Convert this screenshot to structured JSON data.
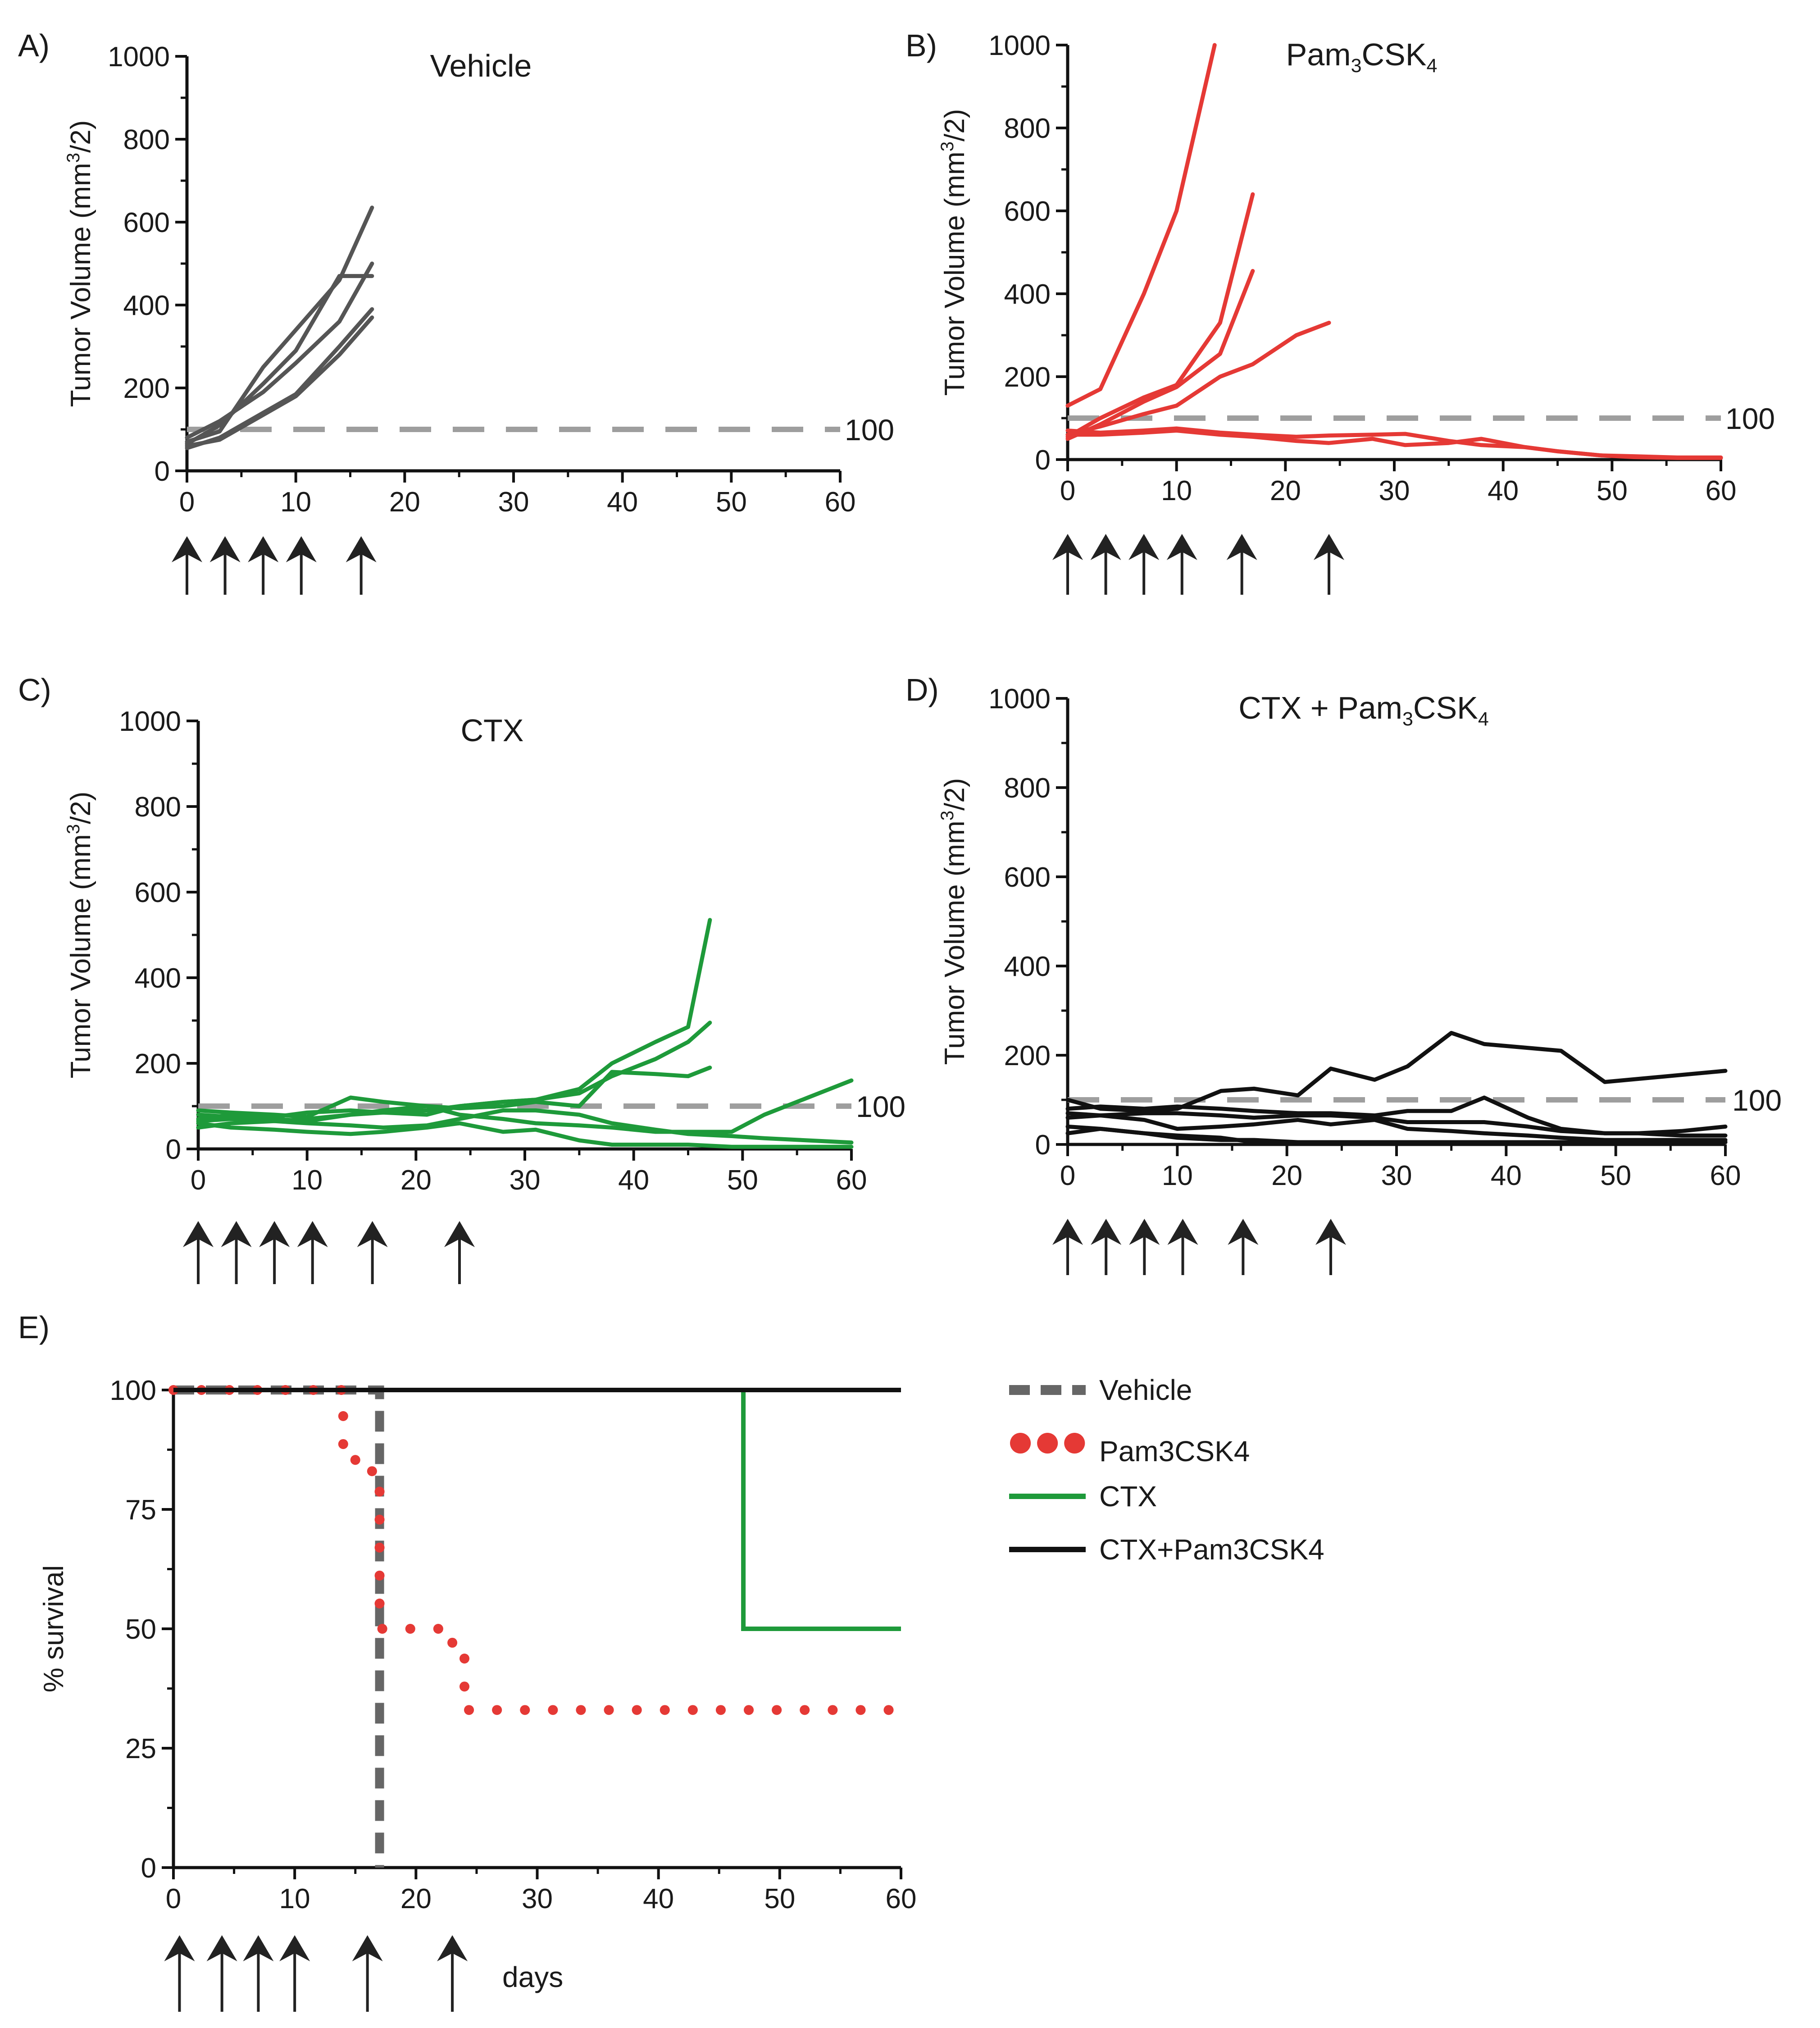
{
  "chart_data": [
    {
      "panel": "A)",
      "type": "line",
      "title": "Vehicle",
      "ylabel": "Tumor Volume (mm³/2)",
      "xlabel": "",
      "xlim": [
        0,
        60
      ],
      "ylim": [
        0,
        1000
      ],
      "xticks": [
        0,
        10,
        20,
        30,
        40,
        50,
        60
      ],
      "yticks": [
        0,
        200,
        400,
        600,
        800,
        1000
      ],
      "threshold": {
        "value": 100,
        "label": "100",
        "color": "#9e9e9e"
      },
      "line_color": "#555555",
      "dosing_days": [
        0,
        3.5,
        7,
        10.5,
        16
      ],
      "series": [
        {
          "x": [
            0,
            3,
            7,
            10,
            14,
            17
          ],
          "y": [
            65,
            110,
            210,
            290,
            470,
            470
          ]
        },
        {
          "x": [
            0,
            3,
            7,
            10,
            14,
            17
          ],
          "y": [
            70,
            95,
            250,
            340,
            460,
            635
          ]
        },
        {
          "x": [
            0,
            3,
            7,
            10,
            14,
            17
          ],
          "y": [
            80,
            120,
            190,
            260,
            360,
            500
          ]
        },
        {
          "x": [
            0,
            3,
            7,
            10,
            14,
            17
          ],
          "y": [
            55,
            80,
            140,
            185,
            300,
            390
          ]
        },
        {
          "x": [
            0,
            3,
            7,
            10,
            14,
            17
          ],
          "y": [
            60,
            75,
            135,
            180,
            280,
            370
          ]
        }
      ]
    },
    {
      "panel": "B)",
      "type": "line",
      "title": "Pam₃CSK₄",
      "ylabel": "Tumor Volume (mm³/2)",
      "xlabel": "",
      "xlim": [
        0,
        60
      ],
      "ylim": [
        0,
        1000
      ],
      "xticks": [
        0,
        10,
        20,
        30,
        40,
        50,
        60
      ],
      "yticks": [
        0,
        200,
        400,
        600,
        800,
        1000
      ],
      "threshold": {
        "value": 100,
        "label": "100",
        "color": "#9e9e9e"
      },
      "line_color": "#e53935",
      "dosing_days": [
        0,
        3.5,
        7,
        10.5,
        16,
        24
      ],
      "series": [
        {
          "x": [
            0,
            3,
            7,
            10,
            13.5
          ],
          "y": [
            130,
            170,
            400,
            600,
            1000
          ]
        },
        {
          "x": [
            0,
            3,
            7,
            10,
            14,
            17
          ],
          "y": [
            55,
            100,
            150,
            180,
            330,
            640
          ]
        },
        {
          "x": [
            0,
            3,
            7,
            10,
            14,
            17
          ],
          "y": [
            50,
            85,
            140,
            175,
            255,
            455
          ]
        },
        {
          "x": [
            0,
            3,
            7,
            10,
            14,
            17,
            21,
            24
          ],
          "y": [
            60,
            80,
            110,
            130,
            200,
            230,
            300,
            330
          ]
        },
        {
          "x": [
            0,
            3,
            7,
            10,
            14,
            17,
            21,
            24,
            28,
            31,
            35,
            38,
            42,
            45,
            49,
            52,
            56,
            60
          ],
          "y": [
            70,
            65,
            70,
            75,
            65,
            60,
            55,
            58,
            60,
            62,
            45,
            35,
            30,
            20,
            10,
            8,
            5,
            5
          ]
        },
        {
          "x": [
            0,
            3,
            7,
            10,
            14,
            17,
            21,
            24,
            28,
            31,
            35,
            38,
            42,
            45,
            49,
            52,
            56,
            60
          ],
          "y": [
            60,
            60,
            65,
            70,
            60,
            55,
            45,
            40,
            50,
            35,
            40,
            50,
            30,
            20,
            10,
            6,
            4,
            4
          ]
        }
      ]
    },
    {
      "panel": "C)",
      "type": "line",
      "title": "CTX",
      "ylabel": "Tumor Volume (mm³/2)",
      "xlabel": "",
      "xlim": [
        0,
        60
      ],
      "ylim": [
        0,
        1000
      ],
      "xticks": [
        0,
        10,
        20,
        30,
        40,
        50,
        60
      ],
      "yticks": [
        0,
        200,
        400,
        600,
        800,
        1000
      ],
      "threshold": {
        "value": 100,
        "label": "100",
        "color": "#9e9e9e"
      },
      "line_color": "#1e9a3a",
      "dosing_days": [
        0,
        3.5,
        7,
        10.5,
        16,
        24
      ],
      "series": [
        {
          "x": [
            0,
            3,
            7,
            10,
            14,
            17,
            21,
            24,
            28,
            31,
            35,
            38,
            42,
            45,
            47
          ],
          "y": [
            70,
            80,
            75,
            85,
            90,
            85,
            80,
            100,
            110,
            115,
            140,
            200,
            250,
            285,
            535
          ]
        },
        {
          "x": [
            0,
            3,
            7,
            10,
            14,
            17,
            21,
            24,
            28,
            31,
            35,
            38,
            42,
            45,
            47
          ],
          "y": [
            50,
            60,
            65,
            70,
            80,
            85,
            90,
            100,
            110,
            115,
            130,
            170,
            210,
            250,
            295
          ]
        },
        {
          "x": [
            0,
            3,
            7,
            10,
            14,
            17,
            21,
            24,
            28,
            31,
            35,
            38,
            42,
            45,
            47
          ],
          "y": [
            80,
            75,
            70,
            65,
            80,
            90,
            100,
            95,
            100,
            110,
            100,
            180,
            175,
            170,
            190
          ]
        },
        {
          "x": [
            0,
            3,
            7,
            10,
            14,
            17,
            21,
            24,
            28,
            31,
            35,
            38,
            42,
            45,
            49,
            52,
            56,
            60
          ],
          "y": [
            90,
            85,
            80,
            75,
            120,
            110,
            100,
            80,
            70,
            60,
            55,
            50,
            40,
            40,
            40,
            80,
            120,
            160
          ]
        },
        {
          "x": [
            0,
            3,
            7,
            10,
            14,
            17,
            21,
            24,
            28,
            31,
            35,
            38,
            42,
            45,
            49,
            52,
            56,
            60
          ],
          "y": [
            65,
            70,
            65,
            60,
            55,
            50,
            55,
            70,
            90,
            90,
            80,
            60,
            45,
            35,
            30,
            25,
            20,
            15
          ]
        },
        {
          "x": [
            0,
            3,
            7,
            10,
            14,
            17,
            21,
            24,
            28,
            31,
            35,
            38,
            42,
            45,
            49,
            52,
            56,
            60
          ],
          "y": [
            60,
            50,
            45,
            40,
            35,
            40,
            50,
            60,
            40,
            45,
            20,
            10,
            10,
            10,
            5,
            5,
            5,
            5
          ]
        }
      ]
    },
    {
      "panel": "D)",
      "type": "line",
      "title": "CTX + Pam₃CSK₄",
      "ylabel": "Tumor Volume (mm³/2)",
      "xlabel": "",
      "xlim": [
        0,
        60
      ],
      "ylim": [
        0,
        1000
      ],
      "xticks": [
        0,
        10,
        20,
        30,
        40,
        50,
        60
      ],
      "yticks": [
        0,
        200,
        400,
        600,
        800,
        1000
      ],
      "threshold": {
        "value": 100,
        "label": "100",
        "color": "#9e9e9e"
      },
      "line_color": "#111111",
      "dosing_days": [
        0,
        3.5,
        7,
        10.5,
        16,
        24
      ],
      "series": [
        {
          "x": [
            0,
            3,
            7,
            10,
            14,
            17,
            21,
            24,
            28,
            31,
            35,
            38,
            45,
            49,
            60
          ],
          "y": [
            100,
            80,
            75,
            80,
            120,
            125,
            110,
            170,
            145,
            175,
            250,
            225,
            210,
            140,
            165
          ]
        },
        {
          "x": [
            0,
            3,
            7,
            10,
            14,
            17,
            21,
            24,
            28,
            31,
            35,
            38,
            42,
            45,
            49,
            52,
            56,
            60
          ],
          "y": [
            80,
            85,
            80,
            85,
            80,
            75,
            70,
            70,
            65,
            75,
            75,
            105,
            60,
            35,
            25,
            25,
            20,
            20
          ]
        },
        {
          "x": [
            0,
            3,
            7,
            10,
            14,
            17,
            21,
            24,
            28,
            31,
            35,
            38,
            42,
            45,
            49,
            52,
            56,
            60
          ],
          "y": [
            60,
            65,
            70,
            70,
            65,
            60,
            65,
            65,
            60,
            50,
            50,
            50,
            40,
            30,
            25,
            25,
            30,
            40
          ]
        },
        {
          "x": [
            0,
            3,
            7,
            10,
            14,
            17,
            21,
            24,
            28,
            31,
            35,
            38,
            42,
            45,
            49,
            52,
            56,
            60
          ],
          "y": [
            70,
            65,
            55,
            35,
            40,
            45,
            55,
            45,
            55,
            35,
            30,
            25,
            20,
            15,
            10,
            10,
            10,
            10
          ]
        },
        {
          "x": [
            0,
            3,
            7,
            10,
            14,
            17,
            21,
            24,
            28,
            31,
            35,
            38,
            42,
            45,
            49,
            52,
            56,
            60
          ],
          "y": [
            40,
            35,
            25,
            20,
            15,
            5,
            5,
            5,
            5,
            5,
            5,
            5,
            5,
            5,
            5,
            5,
            5,
            5
          ]
        },
        {
          "x": [
            0,
            3,
            7,
            10,
            14,
            17,
            21,
            24,
            28,
            31,
            35,
            38,
            42,
            45,
            49,
            52,
            56,
            60
          ],
          "y": [
            25,
            35,
            25,
            15,
            10,
            10,
            5,
            5,
            5,
            5,
            5,
            5,
            5,
            5,
            5,
            5,
            5,
            5
          ]
        }
      ]
    },
    {
      "panel": "E)",
      "type": "line",
      "subtype": "survival-step",
      "title": "",
      "xlabel": "days",
      "ylabel": "% survival",
      "xlim": [
        0,
        60
      ],
      "ylim": [
        0,
        100
      ],
      "xticks": [
        0,
        10,
        20,
        30,
        40,
        50,
        60
      ],
      "yticks": [
        0,
        25,
        50,
        75,
        100
      ],
      "dosing_days": [
        0.5,
        4,
        7,
        10,
        16,
        23
      ],
      "legend_position": "right",
      "series": [
        {
          "name": "Vehicle",
          "color": "#666666",
          "style": "dashed",
          "x": [
            0,
            17,
            17
          ],
          "y": [
            100,
            100,
            0
          ]
        },
        {
          "name": "Pam3CSK4",
          "color": "#e53935",
          "style": "dotted",
          "x": [
            0,
            14,
            14,
            15,
            15,
            17,
            17,
            23,
            23,
            24,
            24,
            60
          ],
          "y": [
            100,
            100,
            87.5,
            87.5,
            83,
            83,
            50,
            50,
            46,
            46,
            33,
            33
          ]
        },
        {
          "name": "CTX",
          "color": "#1e9a3a",
          "style": "solid",
          "x": [
            0,
            47,
            47,
            60
          ],
          "y": [
            100,
            100,
            50,
            50
          ]
        },
        {
          "name": "CTX+Pam3CSK4",
          "color": "#111111",
          "style": "solid",
          "x": [
            0,
            60
          ],
          "y": [
            100,
            100
          ]
        }
      ]
    }
  ]
}
